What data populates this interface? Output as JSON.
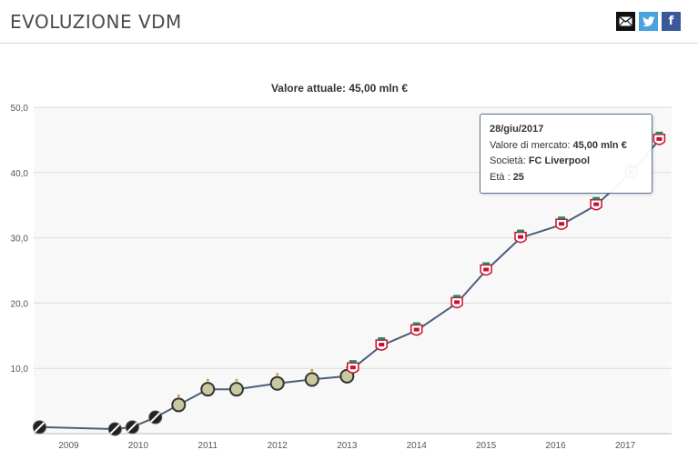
{
  "header": {
    "title": "EVOLUZIONE VDM"
  },
  "share": {
    "mail_icon": "envelope-icon",
    "twitter_icon": "twitter-icon",
    "facebook_icon": "facebook-icon",
    "fb_glyph": "f"
  },
  "colors": {
    "line": "#4a5f7a",
    "plot_bg": "#f8f8f8",
    "grid": "#dcdcdc",
    "liverpool": "#c8102e",
    "vasco": "#222222",
    "gremio_marker": "#c9c9a0"
  },
  "chart_data": {
    "type": "line",
    "subtitle": "Valore attuale: 45,00 mln €",
    "xlabel": "",
    "ylabel": "",
    "xlim": [
      "2008-07-01",
      "2017-09-01"
    ],
    "ylim": [
      0,
      50
    ],
    "yticks": [
      "50,0",
      "40,0",
      "30,0",
      "20,0",
      "10,0"
    ],
    "ytick_values": [
      50,
      40,
      30,
      20,
      10
    ],
    "xticks": [
      "2009",
      "2010",
      "2011",
      "2012",
      "2013",
      "2014",
      "2015",
      "2016",
      "2017"
    ],
    "xtick_dates": [
      "2009-01-01",
      "2010-01-01",
      "2011-01-01",
      "2012-01-01",
      "2013-01-01",
      "2014-01-01",
      "2015-01-01",
      "2016-01-01",
      "2017-01-01"
    ],
    "grid": true,
    "series": [
      {
        "points": [
          {
            "x": "2008-08-01",
            "y": 1.0,
            "club": "vasco"
          },
          {
            "x": "2009-09-01",
            "y": 0.7,
            "club": "vasco"
          },
          {
            "x": "2009-12-01",
            "y": 1.0,
            "club": "vasco"
          },
          {
            "x": "2010-04-01",
            "y": 2.5,
            "club": "vasco"
          },
          {
            "x": "2010-08-01",
            "y": 4.4,
            "club": "gremio"
          },
          {
            "x": "2011-01-01",
            "y": 6.8,
            "club": "gremio"
          },
          {
            "x": "2011-06-01",
            "y": 6.8,
            "club": "gremio"
          },
          {
            "x": "2012-01-01",
            "y": 7.7,
            "club": "gremio"
          },
          {
            "x": "2012-07-01",
            "y": 8.3,
            "club": "gremio"
          },
          {
            "x": "2013-01-01",
            "y": 8.8,
            "club": "gremio"
          },
          {
            "x": "2013-02-01",
            "y": 10.0,
            "club": "liverpool"
          },
          {
            "x": "2013-07-01",
            "y": 13.5,
            "club": "liverpool"
          },
          {
            "x": "2014-01-01",
            "y": 15.8,
            "club": "liverpool"
          },
          {
            "x": "2014-08-01",
            "y": 20.0,
            "club": "liverpool"
          },
          {
            "x": "2015-01-01",
            "y": 25.0,
            "club": "liverpool"
          },
          {
            "x": "2015-07-01",
            "y": 30.0,
            "club": "liverpool"
          },
          {
            "x": "2016-02-01",
            "y": 32.0,
            "club": "liverpool"
          },
          {
            "x": "2016-08-01",
            "y": 35.0,
            "club": "liverpool"
          },
          {
            "x": "2017-02-01",
            "y": 40.0,
            "club": "liverpool"
          },
          {
            "x": "2017-06-28",
            "y": 45.0,
            "club": "liverpool"
          }
        ]
      }
    ],
    "tooltip": {
      "date": "28/giu/2017",
      "value_label": "Valore di mercato:",
      "value": "45,00 mln €",
      "club_label": "Società:",
      "club": "FC Liverpool",
      "age_label": "Età :",
      "age": "25"
    }
  }
}
